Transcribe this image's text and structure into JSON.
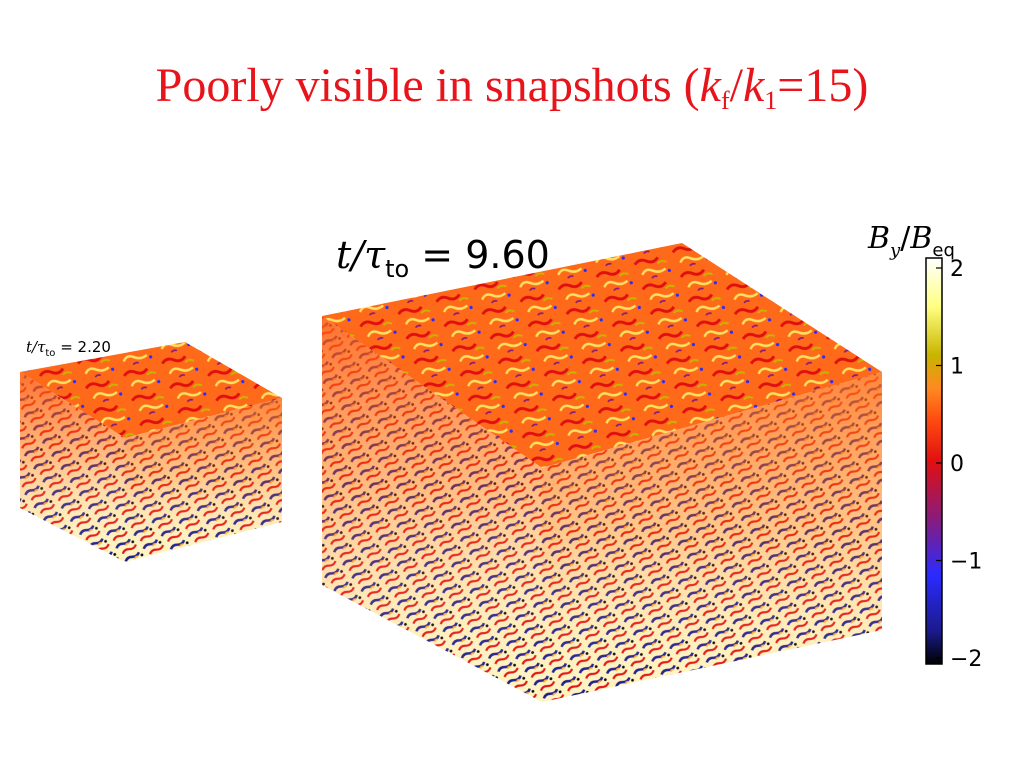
{
  "slide": {
    "title": {
      "prefix": "Poorly visible in snapshots (",
      "k": "k",
      "sub_f": "f",
      "slash": "/",
      "sub_1": "1",
      "suffix": "=15)"
    }
  },
  "snapshots": [
    {
      "time_label_prefix": "t/τ",
      "time_label_sub": "to",
      "time_label_eq": " = ",
      "time_value": "2.20"
    },
    {
      "time_label_prefix": "t/τ",
      "time_label_sub": "to",
      "time_label_eq": " = ",
      "time_value": "9.60"
    }
  ],
  "colorbar": {
    "title_B": "B",
    "title_sub_y": "y",
    "title_slash": "/",
    "title_B2": "B",
    "title_sub_eq": "eq",
    "ticks": [
      "2",
      "1",
      "0",
      "−1",
      "−2"
    ],
    "range": [
      -2,
      2
    ],
    "stops": [
      "#000000",
      "#1a1a8c",
      "#2b2bff",
      "#8a1b7a",
      "#e01010",
      "#ff4a10",
      "#ff8a20",
      "#c8b400",
      "#ffff80",
      "#ffffff"
    ]
  },
  "colors": {
    "title": "#e8141b"
  }
}
